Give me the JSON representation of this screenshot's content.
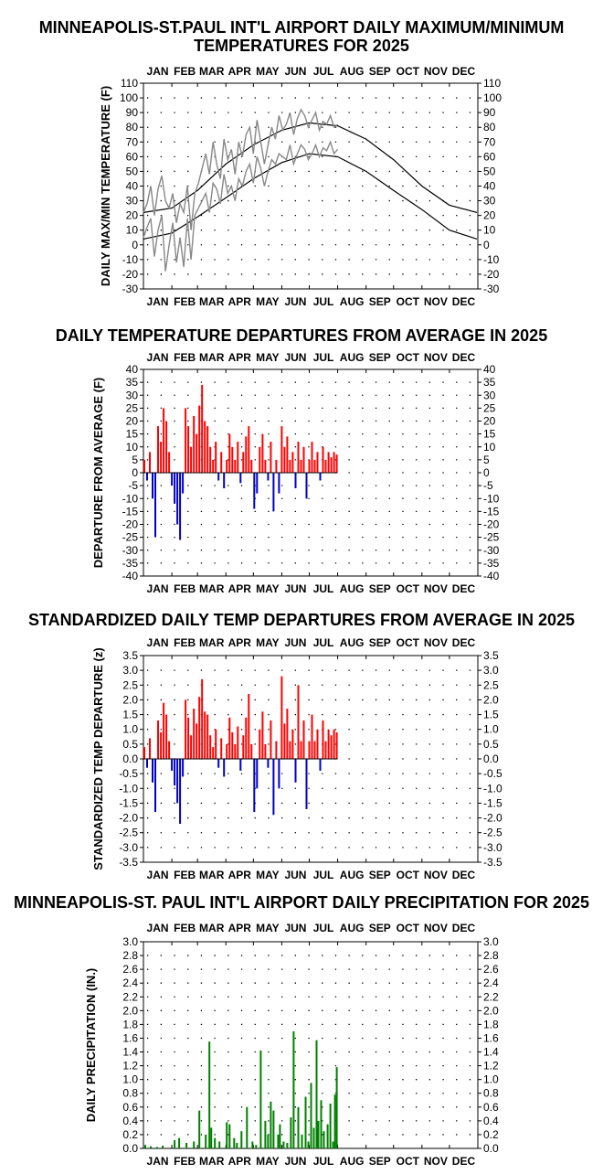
{
  "colors": {
    "max_line": "#888888",
    "normal_line": "#000000",
    "positive": "#ff0000",
    "negative": "#0000cc",
    "precip": "#008000",
    "grid_dots": "#000000"
  },
  "chart_data": [
    {
      "id": "maxmin",
      "type": "line",
      "title": [
        "MINNEAPOLIS-ST.PAUL INT'L AIRPORT DAILY MAXIMUM/MINIMUM",
        "TEMPERATURES FOR 2025"
      ],
      "ylabel": "DAILY MAX/MIN TEMPERATURE (F)",
      "months": [
        "JAN",
        "FEB",
        "MAR",
        "APR",
        "MAY",
        "JUN",
        "JUL",
        "AUG",
        "SEP",
        "OCT",
        "NOV",
        "DEC"
      ],
      "ylim": [
        -30,
        110
      ],
      "ytick_step": 10,
      "grid": true,
      "observed_series": [
        {
          "name": "Daily maximum (observed)",
          "x_days": [
            1,
            5,
            9,
            13,
            17,
            21,
            25,
            29,
            33,
            37,
            41,
            45,
            49,
            53,
            57,
            61,
            65,
            69,
            73,
            77,
            81,
            85,
            89,
            93,
            97,
            101,
            105,
            109,
            113,
            117,
            121,
            125,
            129,
            133,
            137,
            141,
            145,
            149,
            153,
            157,
            161,
            165,
            169,
            173,
            177,
            181,
            185,
            189,
            193,
            197,
            201,
            205,
            209,
            213
          ],
          "values": [
            22,
            28,
            40,
            20,
            38,
            47,
            30,
            25,
            35,
            15,
            28,
            22,
            40,
            10,
            35,
            42,
            52,
            62,
            48,
            70,
            55,
            45,
            72,
            58,
            65,
            48,
            70,
            60,
            75,
            80,
            62,
            85,
            70,
            55,
            68,
            80,
            72,
            88,
            78,
            82,
            90,
            75,
            86,
            92,
            88,
            80,
            85,
            90,
            78,
            84,
            82,
            88,
            80,
            82
          ]
        },
        {
          "name": "Daily minimum (observed)",
          "x_days": [
            1,
            5,
            9,
            13,
            17,
            21,
            25,
            29,
            33,
            37,
            41,
            45,
            49,
            53,
            57,
            61,
            65,
            69,
            73,
            77,
            81,
            85,
            89,
            93,
            97,
            101,
            105,
            109,
            113,
            117,
            121,
            125,
            129,
            133,
            137,
            141,
            145,
            149,
            153,
            157,
            161,
            165,
            169,
            173,
            177,
            181,
            185,
            189,
            193,
            197,
            201,
            205,
            209,
            213
          ],
          "values": [
            5,
            12,
            18,
            -8,
            10,
            20,
            -18,
            0,
            15,
            -12,
            5,
            -15,
            18,
            -10,
            20,
            25,
            30,
            35,
            22,
            42,
            38,
            28,
            48,
            35,
            40,
            30,
            45,
            40,
            50,
            55,
            42,
            60,
            52,
            40,
            50,
            58,
            55,
            62,
            60,
            58,
            68,
            55,
            62,
            68,
            65,
            58,
            62,
            68,
            60,
            66,
            64,
            70,
            62,
            65
          ]
        }
      ],
      "normal_series": [
        {
          "name": "Normal maximum",
          "x_days": [
            1,
            32,
            60,
            91,
            121,
            152,
            182,
            213,
            244,
            274,
            305,
            335,
            365
          ],
          "values": [
            22,
            25,
            37,
            55,
            68,
            78,
            83,
            81,
            72,
            58,
            40,
            27,
            22
          ]
        },
        {
          "name": "Normal minimum",
          "x_days": [
            1,
            32,
            60,
            91,
            121,
            152,
            182,
            213,
            244,
            274,
            305,
            335,
            365
          ],
          "values": [
            4,
            8,
            19,
            32,
            45,
            56,
            62,
            60,
            50,
            37,
            24,
            10,
            4
          ]
        }
      ]
    },
    {
      "id": "departures",
      "type": "bar",
      "title": [
        "DAILY TEMPERATURE DEPARTURES FROM AVERAGE IN 2025"
      ],
      "ylabel": "DEPARTURE FROM AVERAGE (F)",
      "months": [
        "JAN",
        "FEB",
        "MAR",
        "APR",
        "MAY",
        "JUN",
        "JUL",
        "AUG",
        "SEP",
        "OCT",
        "NOV",
        "DEC"
      ],
      "ylim": [
        -40,
        40
      ],
      "ytick_step": 5,
      "grid": true,
      "x_days": [
        2,
        5,
        8,
        11,
        14,
        17,
        20,
        23,
        26,
        29,
        32,
        35,
        38,
        41,
        44,
        47,
        50,
        53,
        56,
        59,
        62,
        65,
        68,
        71,
        74,
        77,
        80,
        83,
        86,
        89,
        92,
        95,
        98,
        101,
        104,
        107,
        110,
        113,
        116,
        119,
        122,
        125,
        128,
        131,
        134,
        137,
        140,
        143,
        146,
        149,
        152,
        155,
        158,
        161,
        164,
        167,
        170,
        173,
        176,
        179,
        182,
        185,
        188,
        191,
        194,
        197,
        200,
        203,
        206,
        209,
        212
      ],
      "values": [
        5,
        -3,
        8,
        -10,
        -25,
        18,
        12,
        25,
        20,
        8,
        -5,
        -12,
        -20,
        -26,
        -8,
        25,
        18,
        10,
        22,
        15,
        26,
        34,
        20,
        18,
        10,
        5,
        12,
        -3,
        8,
        -6,
        5,
        15,
        10,
        5,
        12,
        -4,
        8,
        14,
        18,
        5,
        -14,
        -8,
        10,
        15,
        5,
        -3,
        12,
        -15,
        5,
        -8,
        18,
        10,
        14,
        5,
        8,
        -6,
        12,
        5,
        10,
        -10,
        5,
        12,
        5,
        8,
        -3,
        10,
        5,
        8,
        6,
        8,
        7
      ]
    },
    {
      "id": "standardized",
      "type": "bar",
      "title": [
        "STANDARDIZED DAILY TEMP DEPARTURES FROM AVERAGE IN 2025"
      ],
      "ylabel": "STANDARDIZED TEMP DEPARTURE (z)",
      "months": [
        "JAN",
        "FEB",
        "MAR",
        "APR",
        "MAY",
        "JUN",
        "JUL",
        "AUG",
        "SEP",
        "OCT",
        "NOV",
        "DEC"
      ],
      "ylim": [
        -3.5,
        3.5
      ],
      "ytick_step": 0.5,
      "grid": true,
      "x_days": [
        2,
        5,
        8,
        11,
        14,
        17,
        20,
        23,
        26,
        29,
        32,
        35,
        38,
        41,
        44,
        47,
        50,
        53,
        56,
        59,
        62,
        65,
        68,
        71,
        74,
        77,
        80,
        83,
        86,
        89,
        92,
        95,
        98,
        101,
        104,
        107,
        110,
        113,
        116,
        119,
        122,
        125,
        128,
        131,
        134,
        137,
        140,
        143,
        146,
        149,
        152,
        155,
        158,
        161,
        164,
        167,
        170,
        173,
        176,
        179,
        182,
        185,
        188,
        191,
        194,
        197,
        200,
        203,
        206,
        209,
        212
      ],
      "values": [
        0.4,
        -0.3,
        0.7,
        -0.8,
        -1.8,
        1.3,
        0.9,
        1.9,
        1.5,
        0.6,
        -0.4,
        -0.9,
        -1.5,
        -2.2,
        -0.6,
        2.0,
        1.4,
        0.8,
        1.7,
        1.2,
        2.1,
        2.7,
        1.6,
        1.5,
        0.8,
        0.4,
        1.0,
        -0.3,
        0.7,
        -0.6,
        0.5,
        1.4,
        0.9,
        0.5,
        1.1,
        -0.4,
        0.8,
        1.4,
        2.2,
        0.5,
        -1.8,
        -1.0,
        1.0,
        1.6,
        0.5,
        -0.3,
        1.3,
        -1.9,
        0.6,
        -1.0,
        2.8,
        1.2,
        1.7,
        0.6,
        1.0,
        -0.8,
        2.5,
        0.6,
        1.3,
        -1.7,
        0.6,
        1.5,
        0.6,
        1.0,
        -0.4,
        1.3,
        0.6,
        1.0,
        0.8,
        1.0,
        0.9
      ]
    },
    {
      "id": "precip",
      "type": "bar",
      "title": [
        "MINNEAPOLIS-ST. PAUL INT'L AIRPORT DAILY PRECIPITATION FOR 2025"
      ],
      "ylabel": "DAILY PRECIPITATION (IN.)",
      "months": [
        "JAN",
        "FEB",
        "MAR",
        "APR",
        "MAY",
        "JUN",
        "JUL",
        "AUG",
        "SEP",
        "OCT",
        "NOV",
        "DEC"
      ],
      "ylim": [
        0,
        3.0
      ],
      "ytick_step": 0.2,
      "grid": true,
      "x_days": [
        3,
        9,
        16,
        22,
        35,
        40,
        48,
        56,
        62,
        69,
        73,
        75,
        79,
        84,
        92,
        95,
        100,
        103,
        108,
        114,
        120,
        124,
        129,
        134,
        137,
        140,
        143,
        148,
        150,
        154,
        158,
        162,
        165,
        170,
        174,
        178,
        181,
        184,
        187,
        190,
        192,
        195,
        198,
        202,
        205,
        208,
        210,
        212
      ],
      "values": [
        0.05,
        0.03,
        0.02,
        0.04,
        0.12,
        0.15,
        0.08,
        0.1,
        0.55,
        0.2,
        1.55,
        0.3,
        0.15,
        0.1,
        0.38,
        0.35,
        0.15,
        0.08,
        0.25,
        0.6,
        0.1,
        0.05,
        1.42,
        0.4,
        0.2,
        0.68,
        0.55,
        0.2,
        0.35,
        0.1,
        0.08,
        0.45,
        1.7,
        0.6,
        0.2,
        0.75,
        0.1,
        0.95,
        0.3,
        1.57,
        0.4,
        0.7,
        0.25,
        0.35,
        0.65,
        0.1,
        0.78,
        1.18
      ]
    }
  ]
}
